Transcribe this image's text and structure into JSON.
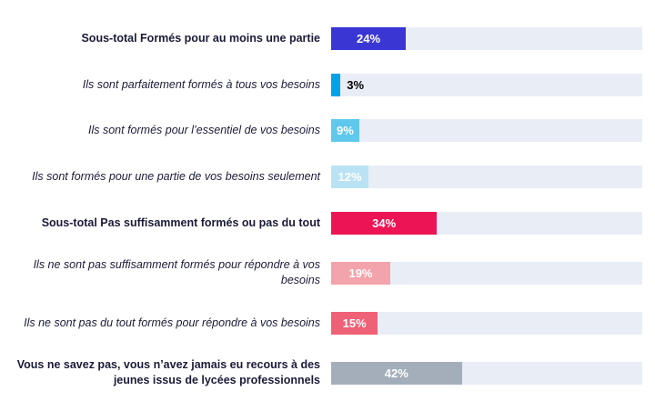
{
  "chart_data": {
    "type": "bar",
    "orientation": "horizontal",
    "title": "",
    "xlabel": "",
    "ylabel": "",
    "xlim": [
      0,
      100
    ],
    "grid": false,
    "track_color": "#e9edf6",
    "categories": [
      "Sous-total Formés pour au moins une partie",
      "Ils sont parfaitement formés à tous vos besoins",
      "Ils sont formés pour l’essentiel de vos besoins",
      "Ils sont formés pour une partie de vos besoins seulement",
      "Sous-total Pas suffisamment formés ou pas du tout",
      "Ils ne sont pas suffisamment formés pour répondre à vos besoins",
      "Ils ne sont pas du tout formés pour répondre à vos besoins",
      "Vous ne savez pas, vous n’avez jamais eu recours à des jeunes issus de lycées professionnels"
    ],
    "values": [
      24,
      3,
      9,
      12,
      34,
      19,
      15,
      42
    ],
    "rows": [
      {
        "label": "Sous-total Formés pour au moins une partie",
        "value": 24,
        "display": "24%",
        "color": "#3a36d3",
        "style": "bold",
        "value_label_position": "inside",
        "value_label_color": "#ffffff"
      },
      {
        "label": "Ils sont parfaitement formés à tous vos besoins",
        "value": 3,
        "display": "3%",
        "color": "#00a3e8",
        "style": "italic",
        "value_label_position": "outside",
        "value_label_color": "#000000"
      },
      {
        "label": "Ils sont formés pour l’essentiel de vos besoins",
        "value": 9,
        "display": "9%",
        "color": "#5fc8ec",
        "style": "italic",
        "value_label_position": "inside",
        "value_label_color": "#ffffff"
      },
      {
        "label": "Ils sont formés pour une partie de vos besoins seulement",
        "value": 12,
        "display": "12%",
        "color": "#b9e3f4",
        "style": "italic",
        "value_label_position": "inside",
        "value_label_color": "#ffffff"
      },
      {
        "label": "Sous-total Pas suffisamment formés ou pas du tout",
        "value": 34,
        "display": "34%",
        "color": "#ec1454",
        "style": "bold",
        "value_label_position": "inside",
        "value_label_color": "#ffffff"
      },
      {
        "label": "Ils ne sont pas suffisamment formés pour répondre à vos besoins",
        "value": 19,
        "display": "19%",
        "color": "#f3a3ab",
        "style": "italic",
        "value_label_position": "inside",
        "value_label_color": "#ffffff"
      },
      {
        "label": "Ils ne sont pas du tout formés pour répondre à vos besoins",
        "value": 15,
        "display": "15%",
        "color": "#ef6176",
        "style": "italic",
        "value_label_position": "inside",
        "value_label_color": "#ffffff"
      },
      {
        "label": "Vous ne savez pas, vous n’avez jamais eu recours à des jeunes issus de lycées professionnels",
        "value": 42,
        "display": "42%",
        "color": "#a4aebb",
        "style": "bold",
        "value_label_position": "inside",
        "value_label_color": "#ffffff"
      }
    ]
  }
}
